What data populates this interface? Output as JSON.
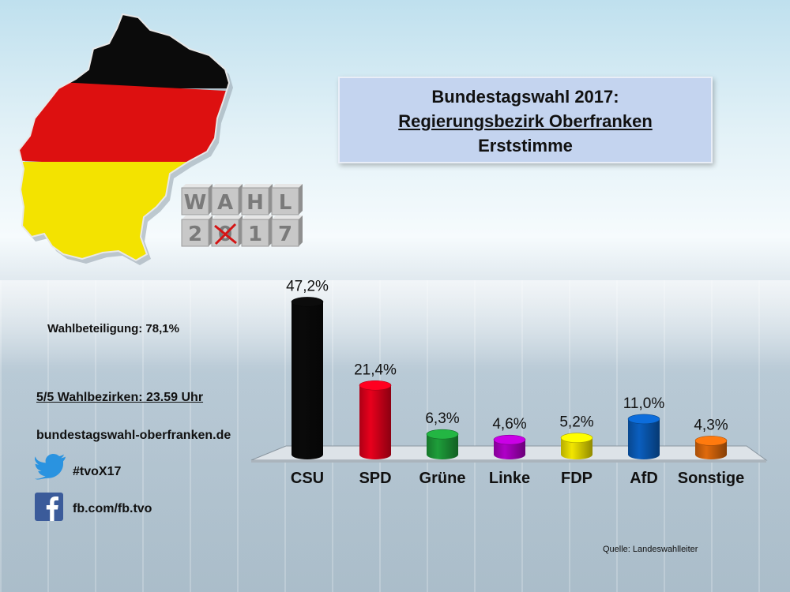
{
  "title": {
    "line1": "Bundestagswahl 2017:",
    "line2": "Regierungsbezirk Oberfranken",
    "line3": "Erststimme"
  },
  "logo": {
    "row1": [
      "W",
      "A",
      "H",
      "L"
    ],
    "row2": [
      "2",
      "0",
      "1",
      "7"
    ]
  },
  "info": {
    "turnout": "Wahlbeteiligung: 78,1%",
    "districts": "5/5 Wahlbezirken: 23.59 Uhr",
    "website": "bundestagswahl-oberfranken.de",
    "twitter": "#tvoX17",
    "facebook": "fb.com/fb.tvo"
  },
  "source": "Quelle: Landeswahlleiter",
  "icons": {
    "twitter": "twitter-bird-icon",
    "facebook": "facebook-icon"
  },
  "chart_data": {
    "type": "bar",
    "title": "Bundestagswahl 2017: Regierungsbezirk Oberfranken Erststimme",
    "categories": [
      "CSU",
      "SPD",
      "Grüne",
      "Linke",
      "FDP",
      "AfD",
      "Sonstige"
    ],
    "values": [
      47.2,
      21.4,
      6.3,
      4.6,
      5.2,
      11.0,
      4.3
    ],
    "labels": [
      "47,2%",
      "21,4%",
      "6,3%",
      "4,6%",
      "5,2%",
      "11,0%",
      "4,3%"
    ],
    "colors": [
      "#0a0a0a",
      "#e8001c",
      "#1e9e3a",
      "#b000c8",
      "#f2e600",
      "#0a5fbf",
      "#e06a0c"
    ],
    "ylim": [
      0,
      50
    ],
    "grid": false,
    "legend": "none"
  }
}
